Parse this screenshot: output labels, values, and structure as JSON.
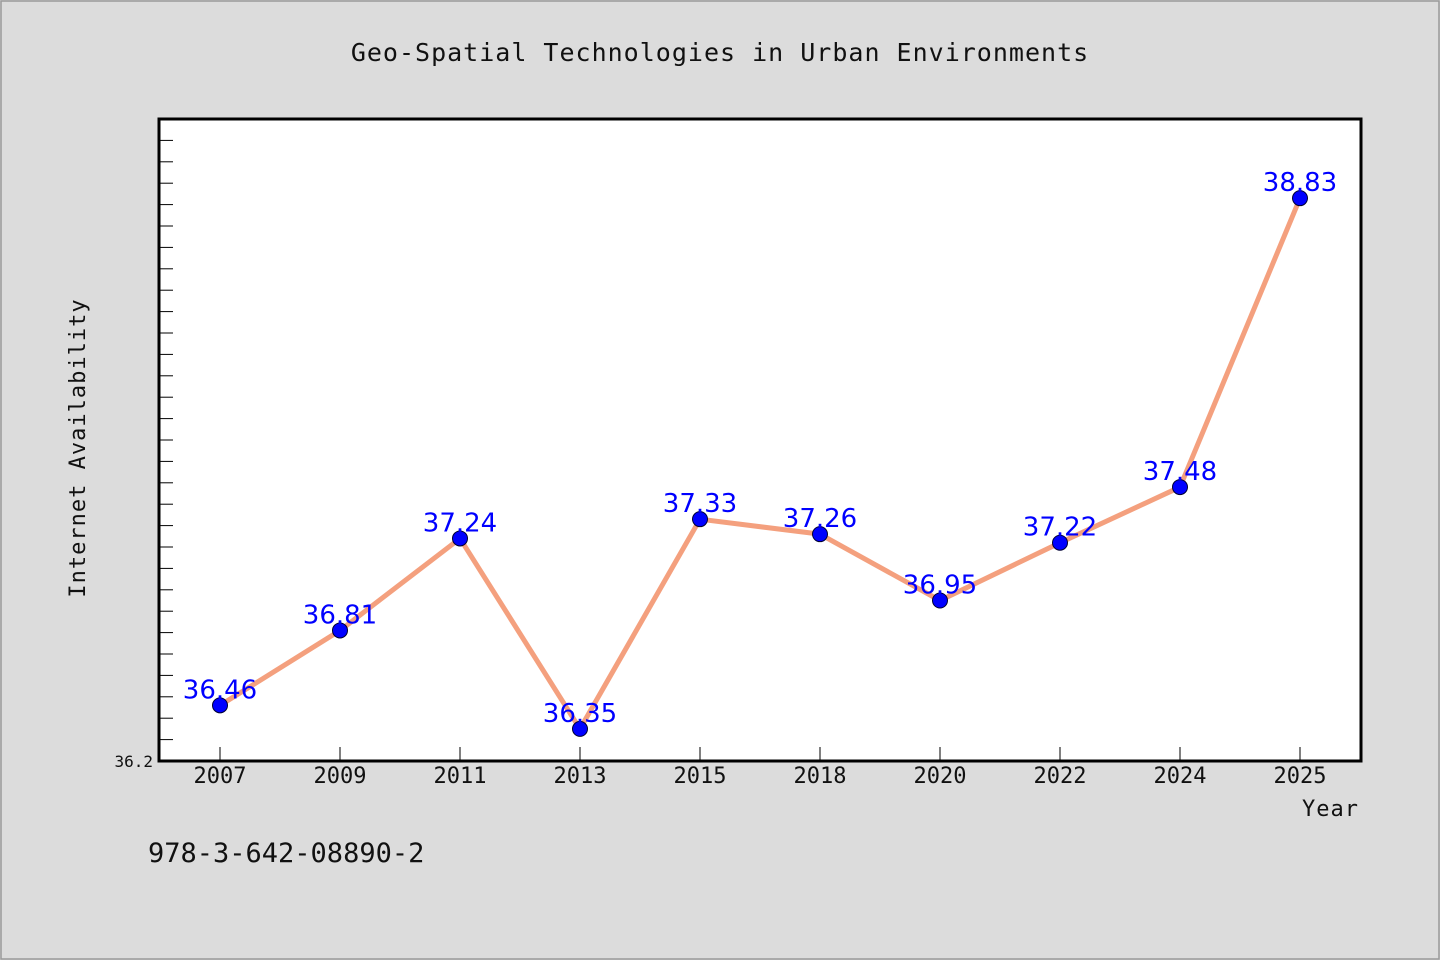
{
  "chart_data": {
    "type": "line",
    "title": "Geo-Spatial Technologies in Urban Environments",
    "xlabel": "Year",
    "ylabel": "Internet Availability",
    "categories": [
      "2007",
      "2009",
      "2011",
      "2013",
      "2015",
      "2018",
      "2020",
      "2022",
      "2024",
      "2025"
    ],
    "series": [
      {
        "values": [
          36.46,
          36.81,
          37.24,
          36.35,
          37.33,
          37.26,
          36.95,
          37.22,
          37.48,
          38.83
        ],
        "labels": [
          "36.46",
          "36.81",
          "37.24",
          "36.35",
          "37.33",
          "37.26",
          "36.95",
          "37.22",
          "37.48",
          "38.83"
        ]
      }
    ],
    "ylim": [
      36.2,
      39.2
    ],
    "yticks": [
      {
        "value": 36.2,
        "label": "36.2"
      }
    ],
    "y_minor_step": 0.1,
    "grid": false,
    "colors": {
      "line": "#f4a07e",
      "marker": "#0000ff",
      "label": "#0000ff",
      "plot_bg": "#ffffff",
      "page_bg": "#dcdcdc"
    }
  },
  "footnote": "978-3-642-08890-2"
}
